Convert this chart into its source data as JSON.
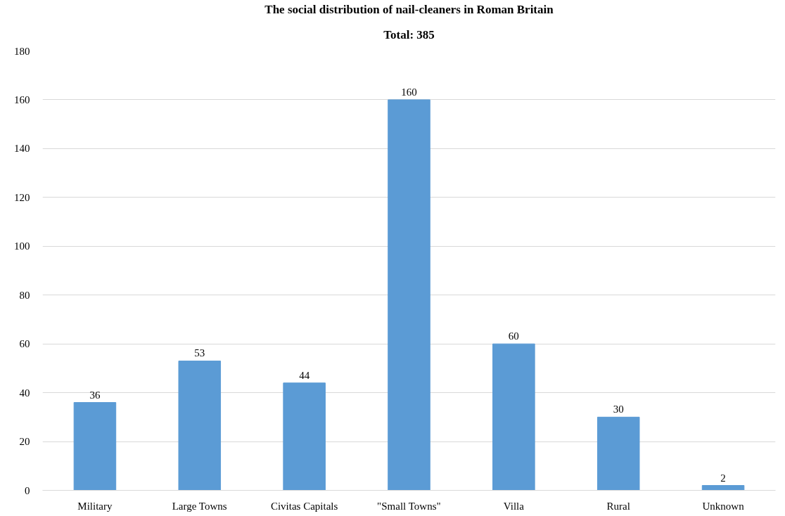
{
  "chart_data": {
    "type": "bar",
    "title": "The social distribution of nail-cleaners in Roman Britain",
    "subtitle": "Total: 385",
    "categories": [
      "Military",
      "Large Towns",
      "Civitas Capitals",
      "\"Small Towns\"",
      "Villa",
      "Rural",
      "Unknown"
    ],
    "values": [
      36,
      53,
      44,
      160,
      60,
      30,
      2
    ],
    "color": "#5b9bd5",
    "ylim": [
      0,
      180
    ],
    "yticks": [
      0,
      20,
      40,
      60,
      80,
      100,
      120,
      140,
      160,
      180
    ],
    "grid": "y",
    "data_labels": true
  }
}
